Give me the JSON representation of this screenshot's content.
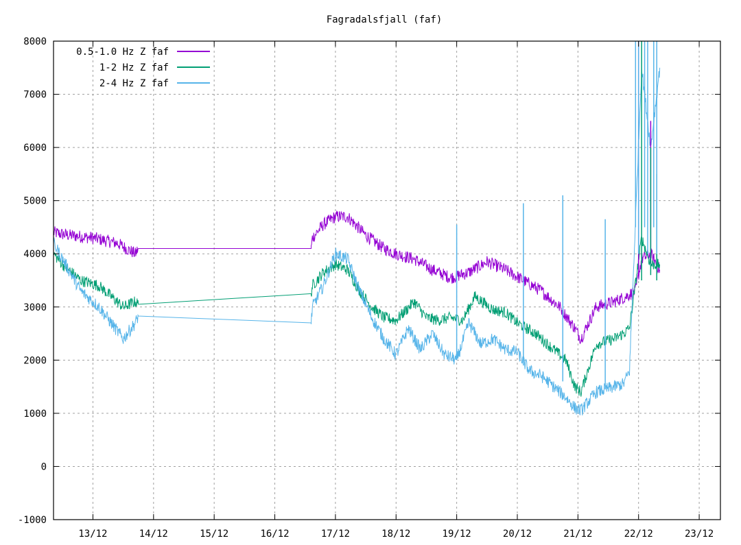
{
  "chart_data": {
    "type": "line",
    "title": "Fagradalsfjall (faf)",
    "xlabel": "",
    "ylabel": "",
    "xlim": [
      12.35,
      23.35
    ],
    "ylim": [
      -1000,
      8000
    ],
    "x_ticks": [
      13,
      14,
      15,
      16,
      17,
      18,
      19,
      20,
      21,
      22,
      23
    ],
    "x_tick_labels": [
      "13/12",
      "14/12",
      "15/12",
      "16/12",
      "17/12",
      "18/12",
      "19/12",
      "20/12",
      "21/12",
      "22/12",
      "23/12"
    ],
    "y_ticks": [
      -1000,
      0,
      1000,
      2000,
      3000,
      4000,
      5000,
      6000,
      7000,
      8000
    ],
    "y_tick_labels": [
      "-1000",
      "0",
      "1000",
      "2000",
      "3000",
      "4000",
      "5000",
      "6000",
      "7000",
      "8000"
    ],
    "grid": true,
    "legend_position": "top-left",
    "series": [
      {
        "name": "0.5-1.0 Hz Z faf",
        "color": "#9400d3",
        "noise": 120,
        "x": [
          12.35,
          12.6,
          13.0,
          13.4,
          13.7,
          13.75,
          16.6,
          16.62,
          16.8,
          17.0,
          17.2,
          17.5,
          17.8,
          18.0,
          18.3,
          18.6,
          18.9,
          19.2,
          19.5,
          19.8,
          20.1,
          20.4,
          20.7,
          20.95,
          21.05,
          21.3,
          21.6,
          21.8,
          21.95,
          22.05,
          22.2,
          22.35
        ],
        "y": [
          4400,
          4350,
          4300,
          4200,
          4000,
          4100,
          4100,
          4300,
          4550,
          4700,
          4700,
          4350,
          4100,
          4000,
          3900,
          3700,
          3550,
          3650,
          3850,
          3700,
          3500,
          3300,
          3000,
          2600,
          2400,
          3000,
          3100,
          3200,
          3300,
          3900,
          4000,
          3700
        ]
      },
      {
        "name": "1-2 Hz Z faf",
        "color": "#009e73",
        "noise": 110,
        "x": [
          12.35,
          12.5,
          12.8,
          13.1,
          13.3,
          13.5,
          13.7,
          13.75,
          16.6,
          16.62,
          16.8,
          17.0,
          17.2,
          17.4,
          17.6,
          17.8,
          18.0,
          18.3,
          18.5,
          18.7,
          18.9,
          19.1,
          19.3,
          19.6,
          19.8,
          20.0,
          20.3,
          20.6,
          20.8,
          20.95,
          21.05,
          21.3,
          21.6,
          21.75,
          21.85,
          22.05,
          22.2,
          22.35
        ],
        "y": [
          4000,
          3800,
          3500,
          3400,
          3200,
          3000,
          3100,
          3050,
          3250,
          3400,
          3650,
          3800,
          3700,
          3300,
          3000,
          2800,
          2750,
          3100,
          2800,
          2750,
          2800,
          2750,
          3200,
          2950,
          2900,
          2700,
          2500,
          2200,
          2000,
          1500,
          1400,
          2300,
          2400,
          2500,
          2600,
          4300,
          3800,
          3800
        ]
      },
      {
        "name": "2-4 Hz Z faf",
        "color": "#56b4e9",
        "noise": 120,
        "x": [
          12.35,
          12.5,
          12.8,
          13.1,
          13.3,
          13.5,
          13.7,
          13.75,
          16.6,
          16.62,
          16.8,
          17.0,
          17.2,
          17.4,
          17.6,
          17.8,
          18.0,
          18.2,
          18.4,
          18.6,
          18.8,
          19.0,
          19.2,
          19.4,
          19.6,
          19.8,
          20.0,
          20.2,
          20.4,
          20.6,
          20.8,
          20.95,
          21.05,
          21.3,
          21.6,
          21.75,
          21.85,
          22.05,
          22.2,
          22.35
        ],
        "y": [
          4200,
          3900,
          3300,
          3000,
          2700,
          2400,
          2700,
          2830,
          2700,
          3000,
          3400,
          4000,
          3900,
          3300,
          2800,
          2400,
          2100,
          2600,
          2200,
          2500,
          2100,
          2000,
          2700,
          2300,
          2400,
          2200,
          2150,
          1800,
          1700,
          1500,
          1300,
          1100,
          1050,
          1400,
          1500,
          1550,
          1800,
          7500,
          6000,
          7500
        ]
      }
    ],
    "spikes": [
      {
        "series": 0,
        "x": 22.0,
        "y0": 3600,
        "y1": 8000
      },
      {
        "series": 0,
        "x": 22.2,
        "y0": 3800,
        "y1": 6500
      },
      {
        "series": 1,
        "x": 22.05,
        "y0": 3500,
        "y1": 8000
      },
      {
        "series": 1,
        "x": 22.2,
        "y0": 3600,
        "y1": 6000
      },
      {
        "series": 1,
        "x": 22.3,
        "y0": 3500,
        "y1": 5500
      },
      {
        "series": 2,
        "x": 19.0,
        "y0": 2000,
        "y1": 4550
      },
      {
        "series": 2,
        "x": 20.1,
        "y0": 1900,
        "y1": 4950
      },
      {
        "series": 2,
        "x": 20.75,
        "y0": 1600,
        "y1": 5100
      },
      {
        "series": 2,
        "x": 21.45,
        "y0": 1450,
        "y1": 4650
      },
      {
        "series": 2,
        "x": 21.95,
        "y0": 4500,
        "y1": 8000
      },
      {
        "series": 2,
        "x": 22.0,
        "y0": 4000,
        "y1": 8000
      },
      {
        "series": 2,
        "x": 22.1,
        "y0": 4500,
        "y1": 8000
      },
      {
        "series": 2,
        "x": 22.15,
        "y0": 4000,
        "y1": 8000
      },
      {
        "series": 2,
        "x": 22.25,
        "y0": 4500,
        "y1": 8000
      },
      {
        "series": 2,
        "x": 22.3,
        "y0": 4000,
        "y1": 8000
      }
    ]
  }
}
